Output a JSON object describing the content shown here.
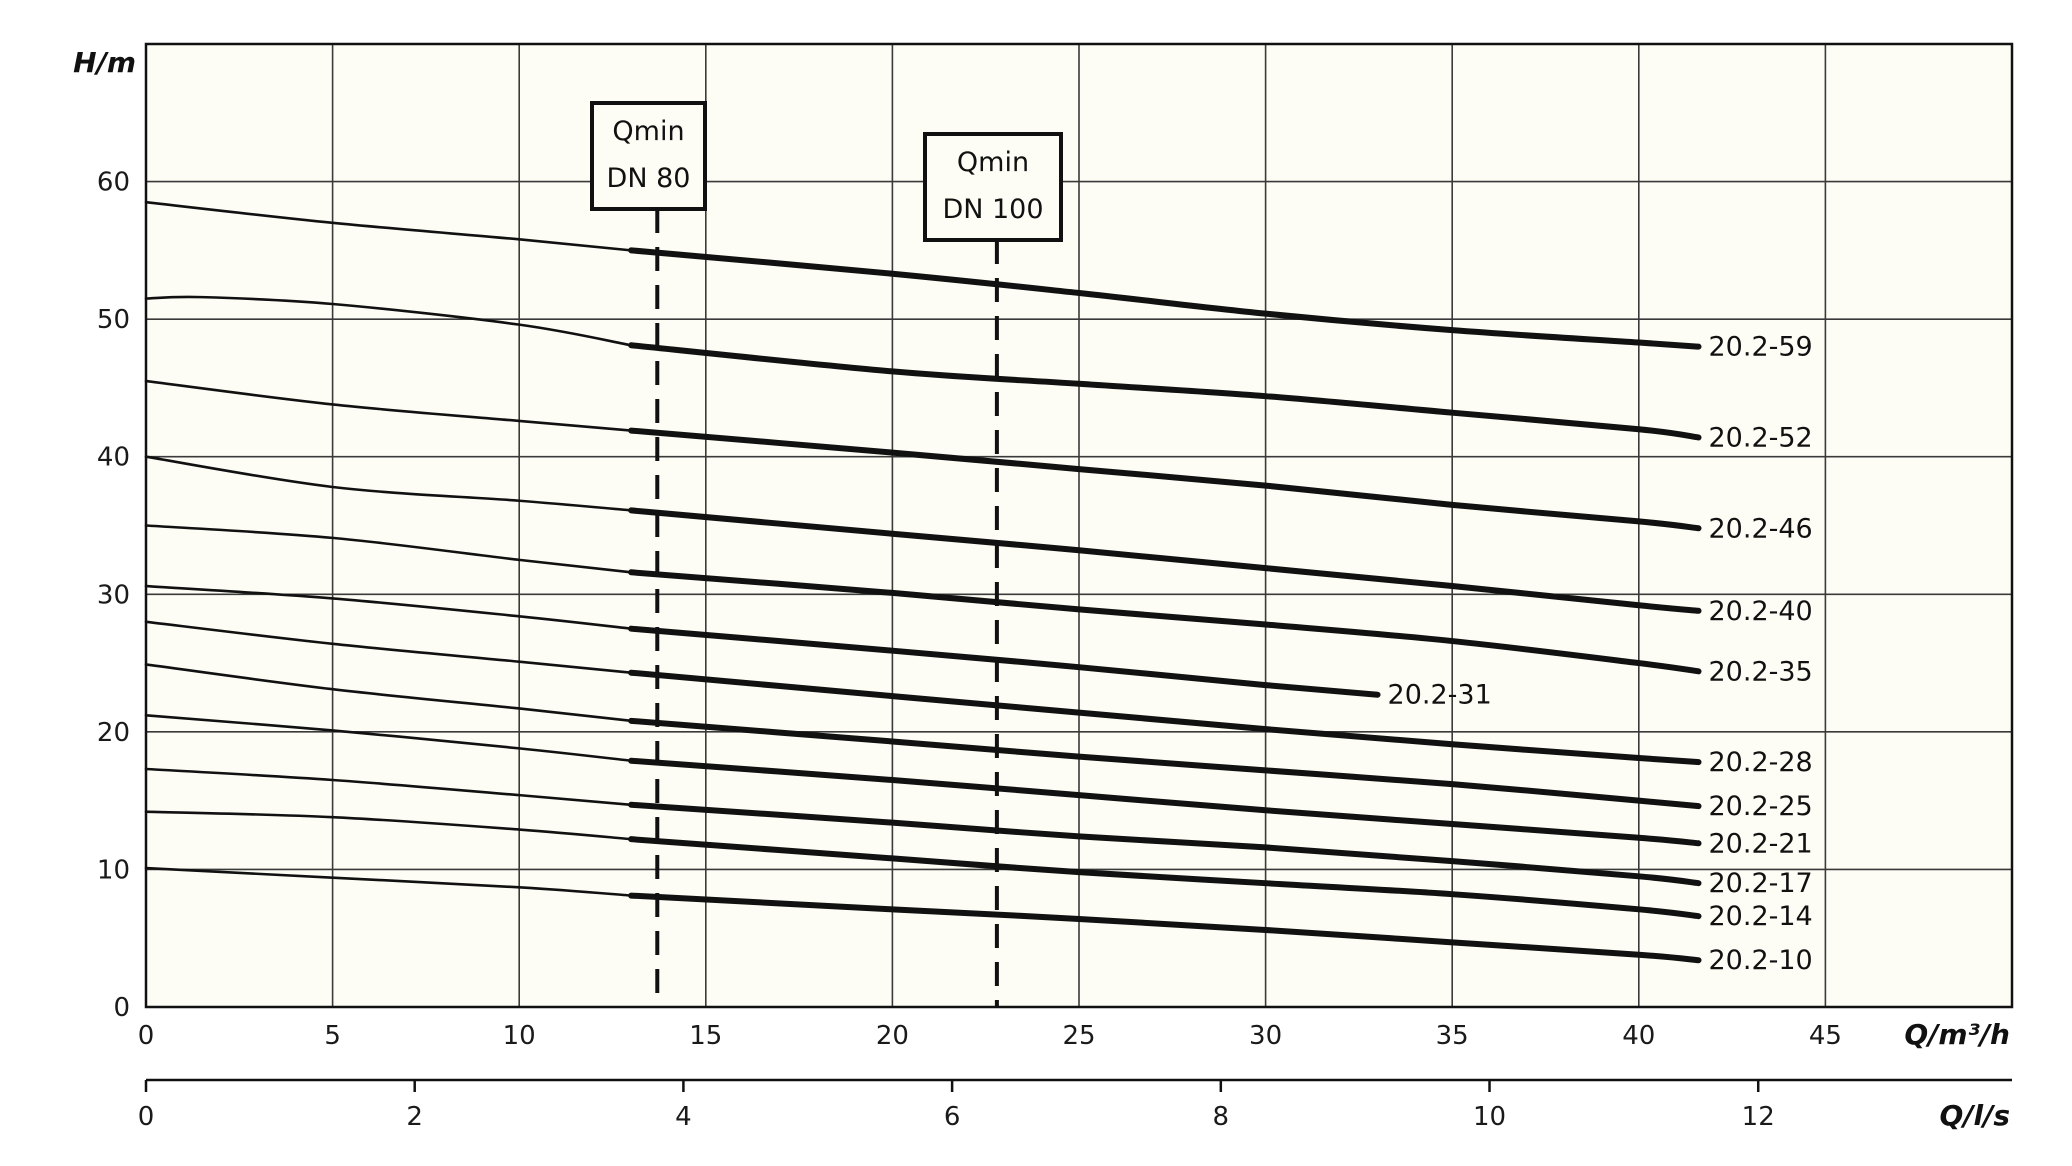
{
  "chart_data": {
    "type": "line",
    "y_axis": {
      "label": "H/m",
      "ylim": [
        0,
        70
      ],
      "ticks": [
        0,
        10,
        20,
        30,
        40,
        50,
        60
      ]
    },
    "x_axis_primary": {
      "label": "Q/m³/h",
      "xlim": [
        0,
        50
      ],
      "ticks": [
        0,
        5,
        10,
        15,
        20,
        25,
        30,
        35,
        40,
        45
      ]
    },
    "x_axis_secondary": {
      "label": "Q/l/s",
      "ticks": [
        0,
        2,
        4,
        6,
        8,
        10,
        12
      ]
    },
    "grid": true,
    "qmin_markers": [
      {
        "line1": "Qmin",
        "line2": "DN 80",
        "x": 13.7
      },
      {
        "line1": "Qmin",
        "line2": "DN 100",
        "x": 22.8
      }
    ],
    "series": [
      {
        "name": "20.2-59",
        "x": [
          0,
          5,
          10,
          13,
          20,
          25,
          30,
          35,
          40,
          41.6
        ],
        "y": [
          58.5,
          57,
          55.8,
          55,
          53.3,
          51.9,
          50.4,
          49.2,
          48.3,
          48
        ]
      },
      {
        "name": "20.2-52",
        "x": [
          0,
          1.5,
          5,
          10,
          13,
          20,
          25,
          30,
          35,
          40,
          41.6
        ],
        "y": [
          51.5,
          51.6,
          51.1,
          49.6,
          48.1,
          46.2,
          45.3,
          44.4,
          43.2,
          42,
          41.4
        ]
      },
      {
        "name": "20.2-46",
        "x": [
          0,
          5,
          10,
          13,
          20,
          25,
          30,
          35,
          40,
          41.6
        ],
        "y": [
          45.5,
          43.8,
          42.6,
          41.9,
          40.3,
          39.1,
          37.9,
          36.5,
          35.3,
          34.8
        ]
      },
      {
        "name": "20.2-40",
        "x": [
          0,
          5,
          10,
          13,
          20,
          25,
          30,
          35,
          40,
          41.6
        ],
        "y": [
          40,
          37.8,
          36.8,
          36.1,
          34.4,
          33.2,
          31.9,
          30.6,
          29.2,
          28.8
        ]
      },
      {
        "name": "20.2-35",
        "x": [
          0,
          5,
          10,
          13,
          20,
          25,
          30,
          35,
          40,
          41.6
        ],
        "y": [
          35,
          34.1,
          32.5,
          31.6,
          30.1,
          28.9,
          27.8,
          26.6,
          25,
          24.4
        ]
      },
      {
        "name": "20.2-31",
        "x": [
          0,
          5,
          10,
          13,
          20,
          25,
          30,
          33
        ],
        "y": [
          30.6,
          29.7,
          28.4,
          27.5,
          25.9,
          24.7,
          23.4,
          22.7
        ]
      },
      {
        "name": "20.2-28",
        "x": [
          0,
          5,
          10,
          13,
          20,
          25,
          30,
          35,
          40,
          41.6
        ],
        "y": [
          28,
          26.4,
          25.1,
          24.3,
          22.6,
          21.4,
          20.2,
          19.1,
          18.1,
          17.8
        ]
      },
      {
        "name": "20.2-25",
        "x": [
          0,
          5,
          10,
          13,
          20,
          25,
          30,
          35,
          40,
          41.6
        ],
        "y": [
          24.9,
          23.1,
          21.7,
          20.8,
          19.3,
          18.2,
          17.2,
          16.2,
          15,
          14.6
        ]
      },
      {
        "name": "20.2-21",
        "x": [
          0,
          5,
          10,
          13,
          20,
          25,
          30,
          35,
          40,
          41.6
        ],
        "y": [
          21.2,
          20.1,
          18.8,
          17.9,
          16.5,
          15.4,
          14.3,
          13.3,
          12.3,
          11.9
        ]
      },
      {
        "name": "20.2-17",
        "x": [
          0,
          5,
          10,
          13,
          20,
          25,
          30,
          35,
          40,
          41.6
        ],
        "y": [
          17.3,
          16.5,
          15.4,
          14.7,
          13.4,
          12.4,
          11.6,
          10.6,
          9.5,
          9
        ]
      },
      {
        "name": "20.2-14",
        "x": [
          0,
          5,
          10,
          13,
          20,
          25,
          30,
          35,
          40,
          41.6
        ],
        "y": [
          14.2,
          13.8,
          12.9,
          12.2,
          10.8,
          9.8,
          9,
          8.2,
          7.1,
          6.6
        ]
      },
      {
        "name": "20.2-10",
        "x": [
          0,
          5,
          10,
          13,
          20,
          25,
          30,
          35,
          40,
          41.6
        ],
        "y": [
          10.1,
          9.4,
          8.7,
          8.1,
          7.1,
          6.4,
          5.6,
          4.7,
          3.8,
          3.4
        ]
      }
    ]
  }
}
